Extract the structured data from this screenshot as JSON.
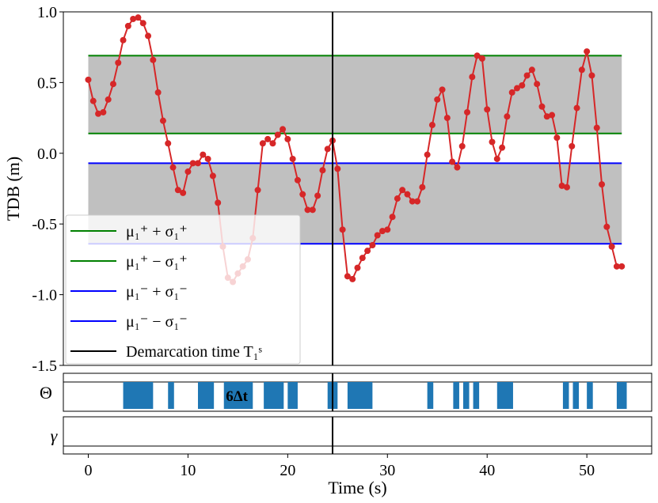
{
  "chart_data": {
    "type": "line",
    "ylabel": "TDB (m)",
    "xlabel": "Time (s)",
    "xlim": [
      -2.5,
      56.5
    ],
    "ylim": [
      -1.5,
      1.0
    ],
    "x_ticks": [
      0,
      10,
      20,
      30,
      40,
      50
    ],
    "y_ticks": [
      1.0,
      0.5,
      0.0,
      -0.5,
      -1.0,
      -1.5
    ],
    "y_tick_labels": [
      "1.0",
      "0.5",
      "0.0",
      "-0.5",
      "-1.0",
      "-1.5"
    ],
    "colors": {
      "line": "#d62728",
      "band": "#c0c0c0",
      "upper_lines": "#008000",
      "lower_lines": "#0000ff",
      "demarcation": "#000000",
      "theta_bars": "#1f77b4"
    },
    "bands": {
      "upper": {
        "x": [
          0,
          53.5
        ],
        "y_low": 0.14,
        "y_high": 0.69
      },
      "lower": {
        "x": [
          0,
          53.5
        ],
        "y_low": -0.64,
        "y_high": -0.07
      }
    },
    "demarcation_x": 24.5,
    "series": [
      {
        "x": [
          0,
          0.5,
          1,
          1.5,
          2,
          2.5,
          3,
          3.5,
          4,
          4.5,
          5,
          5.5,
          6,
          6.5,
          7,
          7.5,
          8,
          8.5,
          9,
          9.5,
          10,
          10.5,
          11,
          11.5,
          12,
          12.5,
          13,
          13.5,
          14,
          14.5,
          15,
          15.5,
          16,
          16.5,
          17,
          17.5,
          18,
          18.5,
          19,
          19.5,
          20,
          20.5,
          21,
          21.5,
          22,
          22.5,
          23,
          23.5,
          24,
          24.5,
          25,
          25.5,
          26,
          26.5,
          27,
          27.5,
          28,
          28.5,
          29,
          29.5,
          30,
          30.5,
          31,
          31.5,
          32,
          32.5,
          33,
          33.5,
          34,
          34.5,
          35,
          35.5,
          36,
          36.5,
          37,
          37.5,
          38,
          38.5,
          39,
          39.5,
          40,
          40.5,
          41,
          41.5,
          42,
          42.5,
          43,
          43.5,
          44,
          44.5,
          45,
          45.5,
          46,
          46.5,
          47,
          47.5,
          48,
          48.5,
          49,
          49.5,
          50,
          50.5,
          51,
          51.5,
          52,
          52.5,
          53,
          53.5
        ],
        "y": [
          0.52,
          0.37,
          0.28,
          0.29,
          0.38,
          0.49,
          0.64,
          0.8,
          0.9,
          0.95,
          0.96,
          0.92,
          0.83,
          0.66,
          0.43,
          0.23,
          0.07,
          -0.1,
          -0.26,
          -0.28,
          -0.13,
          -0.07,
          -0.07,
          -0.01,
          -0.04,
          -0.16,
          -0.35,
          -0.66,
          -0.88,
          -0.91,
          -0.85,
          -0.8,
          -0.75,
          -0.6,
          -0.26,
          0.07,
          0.1,
          0.07,
          0.13,
          0.17,
          0.1,
          -0.04,
          -0.19,
          -0.29,
          -0.4,
          -0.4,
          -0.3,
          -0.12,
          0.03,
          0.09,
          -0.11,
          -0.54,
          -0.87,
          -0.89,
          -0.81,
          -0.74,
          -0.69,
          -0.65,
          -0.58,
          -0.55,
          -0.54,
          -0.45,
          -0.32,
          -0.26,
          -0.29,
          -0.34,
          -0.34,
          -0.24,
          -0.01,
          0.2,
          0.38,
          0.45,
          0.25,
          -0.06,
          -0.1,
          0.05,
          0.29,
          0.54,
          0.69,
          0.67,
          0.31,
          0.08,
          -0.04,
          0.04,
          0.26,
          0.43,
          0.46,
          0.48,
          0.55,
          0.59,
          0.49,
          0.33,
          0.26,
          0.27,
          0.11,
          -0.23,
          -0.24,
          0.05,
          0.32,
          0.59,
          0.72,
          0.55,
          0.18,
          -0.22,
          -0.52,
          -0.66,
          -0.8,
          -0.8
        ]
      }
    ],
    "legend": {
      "placement": "lower-left",
      "entries": [
        {
          "label": "μ₁⁺ + σ₁⁺",
          "color": "#008000"
        },
        {
          "label": "μ₁⁺ − σ₁⁺",
          "color": "#008000"
        },
        {
          "label": "μ₁⁻ + σ₁⁻",
          "color": "#0000ff"
        },
        {
          "label": "μ₁⁻ − σ₁⁻",
          "color": "#0000ff"
        },
        {
          "label": "Demarcation time T₁ˢ",
          "color": "#000000"
        }
      ]
    },
    "theta_panel": {
      "label": "Θ",
      "annotation": "6Δt",
      "intervals": [
        [
          3.5,
          6.5
        ],
        [
          8.0,
          8.6
        ],
        [
          11.0,
          12.6
        ],
        [
          13.6,
          16.5
        ],
        [
          17.6,
          19.6
        ],
        [
          20.0,
          21.0
        ],
        [
          24.0,
          25.0
        ],
        [
          26.0,
          28.5
        ],
        [
          34.0,
          34.6
        ],
        [
          36.6,
          37.2
        ],
        [
          37.6,
          38.2
        ],
        [
          38.6,
          39.2
        ],
        [
          41.0,
          42.6
        ],
        [
          47.6,
          48.2
        ],
        [
          48.6,
          49.2
        ],
        [
          50.0,
          50.6
        ],
        [
          53.0,
          54.0
        ]
      ]
    },
    "gamma_panel": {
      "label": "γ"
    }
  }
}
